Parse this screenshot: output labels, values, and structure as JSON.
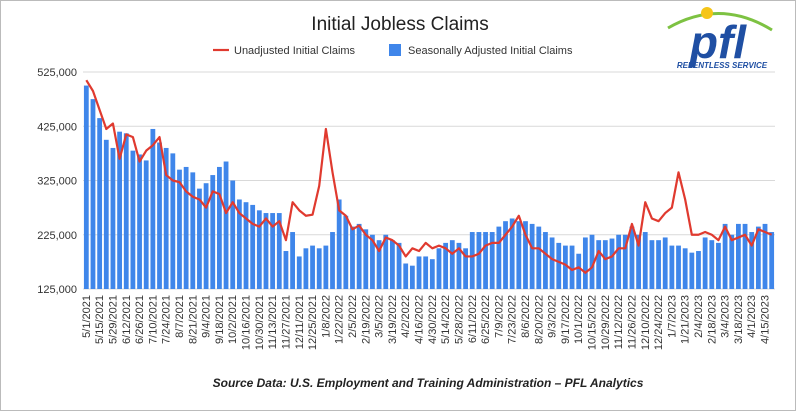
{
  "chart_data": {
    "type": "bar-line",
    "title": "Initial Jobless Claims",
    "note": "Source Data: U.S. Employment and Training Administration – PFL Analytics",
    "logo": {
      "text": "pfl",
      "tagline": "RELENTLESS SERVICE"
    },
    "categories": [
      "5/1/2021",
      null,
      "5/15/2021",
      null,
      "5/29/2021",
      null,
      "6/12/2021",
      null,
      "6/26/2021",
      null,
      "7/10/2021",
      null,
      "7/24/2021",
      null,
      "8/7/2021",
      null,
      "8/21/2021",
      null,
      "9/4/2021",
      null,
      "9/18/2021",
      null,
      "10/2/2021",
      null,
      "10/16/2021",
      null,
      "10/30/2021",
      null,
      "11/13/2021",
      null,
      "11/27/2021",
      null,
      "12/11/2021",
      null,
      "12/25/2021",
      null,
      "1/8/2022",
      null,
      "1/22/2022",
      null,
      "2/5/2022",
      null,
      "2/19/2022",
      null,
      "3/5/2022",
      null,
      "3/19/2022",
      null,
      "4/2/2022",
      null,
      "4/16/2022",
      null,
      "4/30/2022",
      null,
      "5/14/2022",
      null,
      "5/28/2022",
      null,
      "6/11/2022",
      null,
      "6/25/2022",
      null,
      "7/9/2022",
      null,
      "7/23/2022",
      null,
      "8/6/2022",
      null,
      "8/20/2022",
      null,
      "9/3/2022",
      null,
      "9/17/2022",
      null,
      "10/1/2022",
      null,
      "10/15/2022",
      null,
      "10/29/2022",
      null,
      "11/12/2022",
      null,
      "11/26/2022",
      null,
      "12/10/2022",
      null,
      "12/24/2022",
      null,
      "1/7/2023",
      null,
      "1/21/2023",
      null,
      "2/4/2023",
      null,
      "2/18/2023",
      null,
      "3/4/2023",
      null,
      "3/18/2023",
      null,
      "4/1/2023",
      null,
      "4/15/2023",
      null
    ],
    "series": [
      {
        "name": "Unadjusted Initial Claims",
        "kind": "line",
        "color": "#e03a2f",
        "values": [
          510000,
          490000,
          455000,
          420000,
          430000,
          365000,
          410000,
          405000,
          360000,
          380000,
          390000,
          405000,
          335000,
          325000,
          322000,
          305000,
          295000,
          290000,
          275000,
          305000,
          300000,
          265000,
          285000,
          265000,
          255000,
          245000,
          240000,
          255000,
          240000,
          250000,
          215000,
          285000,
          270000,
          260000,
          262000,
          315000,
          420000,
          340000,
          270000,
          260000,
          235000,
          242000,
          225000,
          215000,
          195000,
          220000,
          215000,
          205000,
          185000,
          200000,
          195000,
          210000,
          200000,
          205000,
          200000,
          190000,
          200000,
          185000,
          185000,
          190000,
          205000,
          210000,
          210000,
          225000,
          240000,
          260000,
          225000,
          200000,
          200000,
          190000,
          180000,
          175000,
          170000,
          160000,
          165000,
          155000,
          165000,
          195000,
          180000,
          185000,
          200000,
          200000,
          245000,
          205000,
          285000,
          255000,
          250000,
          265000,
          275000,
          340000,
          290000,
          225000,
          225000,
          230000,
          225000,
          215000,
          240000,
          215000,
          220000,
          225000,
          205000,
          235000,
          230000,
          225000
        ]
      },
      {
        "name": "Seasonally Adjusted Initial Claims",
        "kind": "bar",
        "color": "#3f86ea",
        "values": [
          500000,
          475000,
          440000,
          400000,
          385000,
          415000,
          412000,
          380000,
          373000,
          362000,
          420000,
          395000,
          385000,
          375000,
          345000,
          350000,
          340000,
          310000,
          320000,
          335000,
          350000,
          360000,
          325000,
          290000,
          285000,
          280000,
          270000,
          265000,
          265000,
          265000,
          195000,
          230000,
          185000,
          200000,
          205000,
          200000,
          205000,
          230000,
          290000,
          260000,
          240000,
          245000,
          235000,
          225000,
          215000,
          225000,
          215000,
          210000,
          172000,
          168000,
          185000,
          185000,
          180000,
          200000,
          210000,
          215000,
          210000,
          200000,
          230000,
          230000,
          230000,
          230000,
          240000,
          250000,
          255000,
          250000,
          250000,
          245000,
          240000,
          230000,
          220000,
          210000,
          205000,
          205000,
          190000,
          220000,
          225000,
          215000,
          215000,
          218000,
          225000,
          225000,
          240000,
          225000,
          230000,
          215000,
          215000,
          220000,
          205000,
          205000,
          200000,
          192000,
          195000,
          220000,
          215000,
          210000,
          245000,
          225000,
          245000,
          245000,
          230000,
          240000,
          245000,
          230000
        ]
      }
    ],
    "ylim": [
      125000,
      525000
    ],
    "yticks": [
      {
        "value": 125000,
        "label": "125,000"
      },
      {
        "value": 225000,
        "label": "225,000"
      },
      {
        "value": 325000,
        "label": "325,000"
      },
      {
        "value": 425000,
        "label": "425,000"
      },
      {
        "value": 525000,
        "label": "525,000"
      }
    ],
    "grid": true
  }
}
